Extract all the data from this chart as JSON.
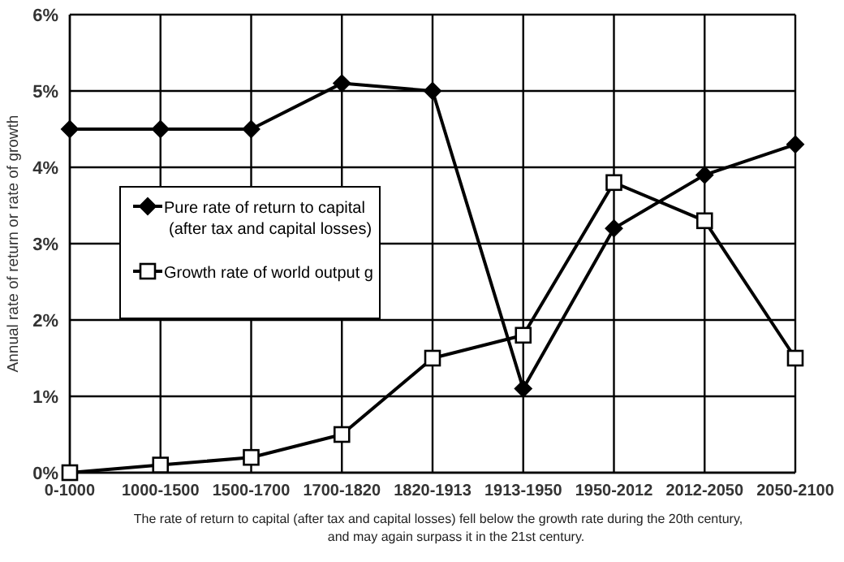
{
  "chart_data": {
    "type": "line",
    "ylabel": "Annual rate of return or rate of growth",
    "categories": [
      "0-1000",
      "1000-1500",
      "1500-1700",
      "1700-1820",
      "1820-1913",
      "1913-1950",
      "1950-2012",
      "2012-2050",
      "2050-2100"
    ],
    "series": [
      {
        "name": "Pure rate of return to capital (after tax and capital losses)",
        "color": "#000000",
        "marker": "diamond",
        "values": [
          4.5,
          4.5,
          4.5,
          5.1,
          5.0,
          1.1,
          3.2,
          3.9,
          4.3
        ]
      },
      {
        "name": "Growth rate of world output g",
        "color": "#000000",
        "marker": "square",
        "values": [
          0,
          0.1,
          0.2,
          0.5,
          1.5,
          1.8,
          3.8,
          3.3,
          1.5
        ]
      }
    ],
    "ylim": [
      0,
      6
    ],
    "yticks": [
      {
        "value": 0,
        "label": "0%"
      },
      {
        "value": 1,
        "label": "1%"
      },
      {
        "value": 2,
        "label": "2%"
      },
      {
        "value": 3,
        "label": "3%"
      },
      {
        "value": 4,
        "label": "4%"
      },
      {
        "value": 5,
        "label": "5%"
      },
      {
        "value": 6,
        "label": "6%"
      }
    ],
    "grid": true,
    "legend": "left",
    "line_style": "solid",
    "annotations": [
      "The rate of return to capital (after tax and capital losses) fell below the growth rate during the 20th century,",
      "and may again surpass it in the 21st century."
    ]
  }
}
